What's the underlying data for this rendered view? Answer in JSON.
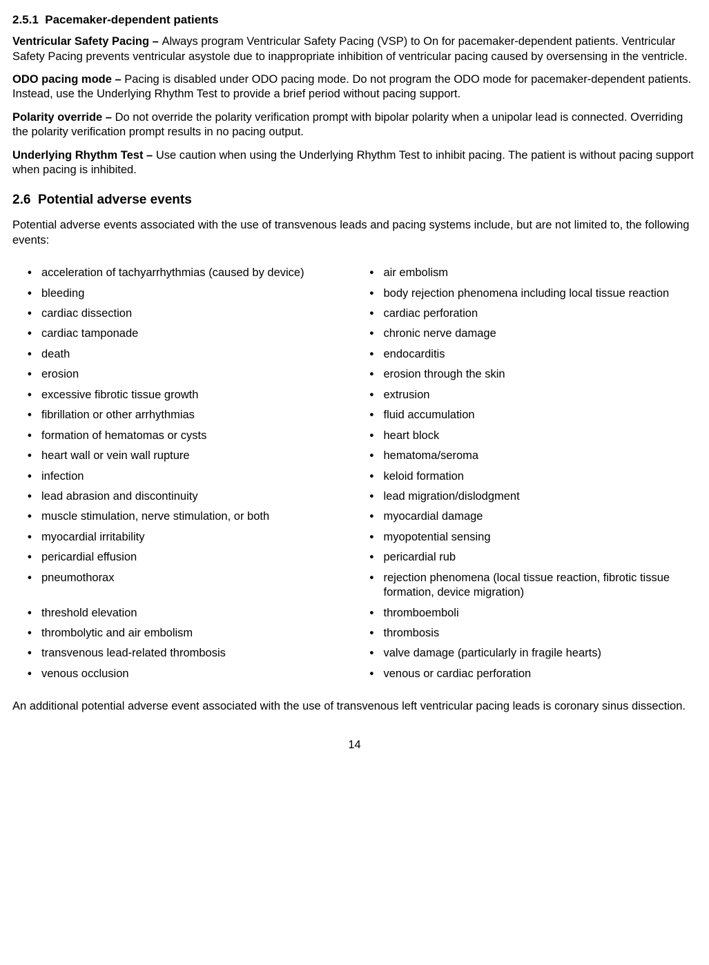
{
  "section251": {
    "number": "2.5.1",
    "title": "Pacemaker-dependent patients"
  },
  "paragraphs": [
    {
      "lead": "Ventricular Safety Pacing – ",
      "body": "Always program Ventricular Safety Pacing (VSP) to On for pacemaker-dependent patients. Ventricular Safety Pacing prevents ventricular asystole due to inappropriate inhibition of ventricular pacing caused by oversensing in the ventricle."
    },
    {
      "lead": "ODO pacing mode – ",
      "body": "Pacing is disabled under ODO pacing mode. Do not program the ODO mode for pacemaker-dependent patients. Instead, use the Underlying Rhythm Test to provide a brief period without pacing support."
    },
    {
      "lead": "Polarity override – ",
      "body": "Do not override the polarity verification prompt with bipolar polarity when a unipolar lead is connected. Overriding the polarity verification prompt results in no pacing output."
    },
    {
      "lead": "Underlying Rhythm Test – ",
      "body": "Use caution when using the Underlying Rhythm Test to inhibit pacing. The patient is without pacing support when pacing is inhibited."
    }
  ],
  "section26": {
    "number": "2.6",
    "title": "Potential adverse events"
  },
  "intro26": "Potential adverse events associated with the use of transvenous leads and pacing systems include, but are not limited to, the following events:",
  "events": [
    [
      "acceleration of tachyarrhythmias (caused by device)",
      "air embolism"
    ],
    [
      "bleeding",
      "body rejection phenomena including local tissue reaction"
    ],
    [
      "cardiac dissection",
      "cardiac perforation"
    ],
    [
      "cardiac tamponade",
      "chronic nerve damage"
    ],
    [
      "death",
      "endocarditis"
    ],
    [
      "erosion",
      "erosion through the skin"
    ],
    [
      "excessive fibrotic tissue growth",
      "extrusion"
    ],
    [
      "fibrillation or other arrhythmias",
      "fluid accumulation"
    ],
    [
      "formation of hematomas or cysts",
      "heart block"
    ],
    [
      "heart wall or vein wall rupture",
      "hematoma/seroma"
    ],
    [
      "infection",
      "keloid formation"
    ],
    [
      "lead abrasion and discontinuity",
      "lead migration/dislodgment"
    ],
    [
      "muscle stimulation, nerve stimulation, or both",
      "myocardial damage"
    ],
    [
      "myocardial irritability",
      "myopotential sensing"
    ],
    [
      "pericardial effusion",
      "pericardial rub"
    ],
    [
      "pneumothorax",
      "rejection phenomena (local tissue reaction, fibrotic tissue formation, device migration)"
    ],
    [
      "threshold elevation",
      "thromboemboli"
    ],
    [
      "thrombolytic and air embolism",
      "thrombosis"
    ],
    [
      "transvenous lead-related thrombosis",
      "valve damage (particularly in fragile hearts)"
    ],
    [
      "venous occlusion",
      "venous or cardiac perforation"
    ]
  ],
  "closing": "An additional potential adverse event associated with the use of transvenous left ventricular pacing leads is coronary sinus dissection.",
  "pageNumber": "14",
  "bulletChar": "•"
}
